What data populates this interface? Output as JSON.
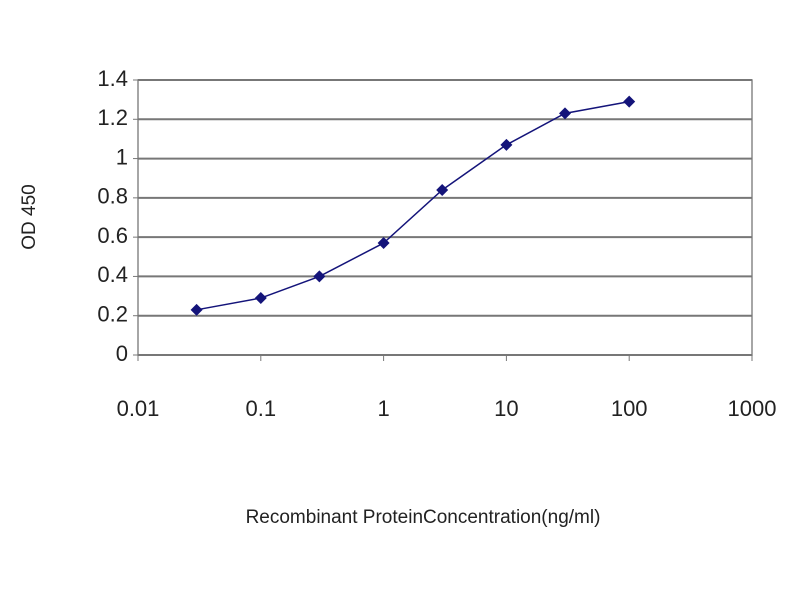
{
  "chart_data": {
    "type": "line",
    "x_label": "Recombinant ProteinConcentration(ng/ml)",
    "y_label": "OD 450",
    "x": [
      0.03,
      0.1,
      0.3,
      1,
      3,
      10,
      30,
      100
    ],
    "series": [
      {
        "color": "#14147a",
        "values": [
          0.23,
          0.29,
          0.4,
          0.57,
          0.84,
          1.07,
          1.23,
          1.29
        ]
      }
    ],
    "xscale": "log",
    "xlim": [
      0.01,
      1000
    ],
    "xticks": [
      0.01,
      0.1,
      1,
      10,
      100,
      1000
    ],
    "ylim": [
      0,
      1.4
    ],
    "yticks": [
      0,
      0.2,
      0.4,
      0.6,
      0.8,
      1,
      1.2,
      1.4
    ],
    "grid": true
  }
}
